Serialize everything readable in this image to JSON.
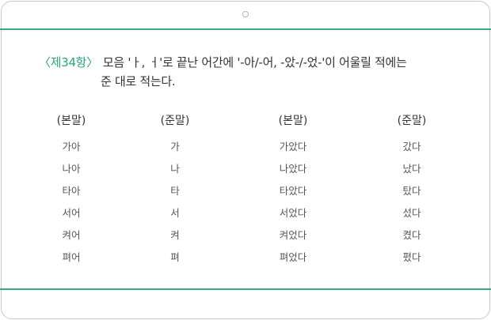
{
  "clause": "〈제34항〉",
  "rule_line1": "모음 'ㅏ, ㅓ'로 끝난 어간에 '-아/-어, -았-/-었-'이 어울릴 적에는",
  "rule_line2": "준 대로 적는다.",
  "columns": [
    {
      "header": "(본말)",
      "cells": [
        "가아",
        "나아",
        "타아",
        "서어",
        "켜어",
        "펴어"
      ]
    },
    {
      "header": "(준말)",
      "cells": [
        "가",
        "나",
        "타",
        "서",
        "켜",
        "펴"
      ]
    },
    {
      "header": "(본말)",
      "cells": [
        "가았다",
        "나았다",
        "타았다",
        "서었다",
        "켜었다",
        "펴었다"
      ]
    },
    {
      "header": "(준말)",
      "cells": [
        "갔다",
        "났다",
        "탔다",
        "섰다",
        "켰다",
        "폈다"
      ]
    }
  ],
  "colors": {
    "accent": "#3aa887",
    "clause": "#2aa47e",
    "text": "#333333"
  }
}
